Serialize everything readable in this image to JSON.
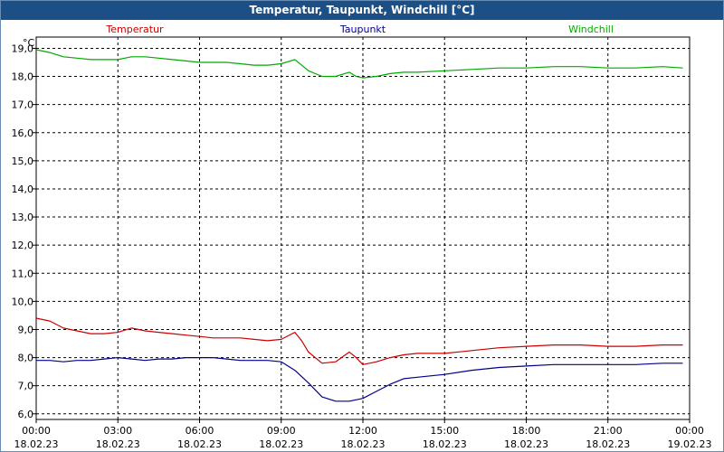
{
  "window": {
    "title": "Temperatur, Taupunkt, Windchill [°C]"
  },
  "colors": {
    "titlebar": "#1b4f86",
    "grid": "#000000",
    "temperatur": "#cc0000",
    "taupunkt": "#00008b",
    "windchill": "#00aa00"
  },
  "chart_data": {
    "type": "line",
    "title": "Temperatur, Taupunkt, Windchill [°C]",
    "ylabel": "°C",
    "xlabel": "",
    "ylim": [
      5.8,
      19.4
    ],
    "xlim": [
      0,
      24
    ],
    "grid": true,
    "legend_placement": "top",
    "y_ticks": [
      "6,0",
      "7,0",
      "8,0",
      "9,0",
      "10,0",
      "11,0",
      "12,0",
      "13,0",
      "14,0",
      "15,0",
      "16,0",
      "17,0",
      "18,0",
      "19,0"
    ],
    "y_tick_values": [
      6,
      7,
      8,
      9,
      10,
      11,
      12,
      13,
      14,
      15,
      16,
      17,
      18,
      19
    ],
    "x_ticks": [
      {
        "value": 0,
        "time": "00:00",
        "date": "18.02.23"
      },
      {
        "value": 3,
        "time": "03:00",
        "date": "18.02.23"
      },
      {
        "value": 6,
        "time": "06:00",
        "date": "18.02.23"
      },
      {
        "value": 9,
        "time": "09:00",
        "date": "18.02.23"
      },
      {
        "value": 12,
        "time": "12:00",
        "date": "18.02.23"
      },
      {
        "value": 15,
        "time": "15:00",
        "date": "18.02.23"
      },
      {
        "value": 18,
        "time": "18:00",
        "date": "18.02.23"
      },
      {
        "value": 21,
        "time": "21:00",
        "date": "18.02.23"
      },
      {
        "value": 24,
        "time": "00:00",
        "date": "19.02.23"
      }
    ],
    "series": [
      {
        "name": "Temperatur",
        "color": "#cc0000",
        "x": [
          0,
          0.5,
          1,
          1.5,
          2,
          2.5,
          3,
          3.5,
          4,
          4.5,
          5,
          5.5,
          6,
          6.5,
          7,
          7.5,
          8,
          8.5,
          9,
          9.5,
          9.75,
          10,
          10.5,
          11,
          11.5,
          11.75,
          12,
          12.5,
          13,
          13.5,
          14,
          15,
          16,
          17,
          18,
          19,
          20,
          21,
          22,
          23,
          23.75
        ],
        "values": [
          9.4,
          9.3,
          9.05,
          8.95,
          8.85,
          8.85,
          8.9,
          9.05,
          8.95,
          8.9,
          8.85,
          8.8,
          8.75,
          8.7,
          8.7,
          8.7,
          8.65,
          8.6,
          8.65,
          8.9,
          8.6,
          8.2,
          7.8,
          7.85,
          8.2,
          8.0,
          7.75,
          7.85,
          8.0,
          8.1,
          8.15,
          8.15,
          8.25,
          8.35,
          8.4,
          8.45,
          8.45,
          8.4,
          8.4,
          8.45,
          8.45
        ]
      },
      {
        "name": "Taupunkt",
        "color": "#00008b",
        "x": [
          0,
          0.5,
          1,
          1.5,
          2,
          2.5,
          3,
          3.5,
          4,
          4.5,
          5,
          5.5,
          6,
          6.5,
          7,
          7.5,
          8,
          8.5,
          9,
          9.5,
          10,
          10.5,
          11,
          11.5,
          12,
          12.5,
          13,
          13.5,
          14,
          15,
          16,
          17,
          18,
          19,
          20,
          21,
          22,
          23,
          23.75
        ],
        "values": [
          7.9,
          7.9,
          7.85,
          7.9,
          7.9,
          7.95,
          8.0,
          7.95,
          7.9,
          7.95,
          7.95,
          8.0,
          8.0,
          8.0,
          7.95,
          7.9,
          7.9,
          7.9,
          7.85,
          7.55,
          7.1,
          6.6,
          6.45,
          6.45,
          6.55,
          6.8,
          7.05,
          7.25,
          7.3,
          7.4,
          7.55,
          7.65,
          7.7,
          7.75,
          7.75,
          7.75,
          7.75,
          7.8,
          7.8
        ]
      },
      {
        "name": "Windchill",
        "color": "#00aa00",
        "x": [
          0,
          0.5,
          1,
          1.5,
          2,
          2.5,
          3,
          3.5,
          4,
          4.5,
          5,
          5.5,
          6,
          6.5,
          7,
          7.5,
          8,
          8.5,
          9,
          9.5,
          9.75,
          10,
          10.5,
          11,
          11.5,
          11.75,
          12,
          12.5,
          13,
          13.5,
          14,
          15,
          16,
          17,
          18,
          19,
          20,
          21,
          22,
          23,
          23.75
        ],
        "values": [
          18.95,
          18.85,
          18.7,
          18.65,
          18.6,
          18.6,
          18.6,
          18.7,
          18.7,
          18.65,
          18.6,
          18.55,
          18.5,
          18.5,
          18.5,
          18.45,
          18.4,
          18.4,
          18.45,
          18.6,
          18.4,
          18.2,
          18.0,
          18.0,
          18.15,
          18.0,
          17.95,
          18.0,
          18.1,
          18.15,
          18.15,
          18.2,
          18.25,
          18.3,
          18.3,
          18.35,
          18.35,
          18.3,
          18.3,
          18.35,
          18.3
        ]
      }
    ]
  }
}
